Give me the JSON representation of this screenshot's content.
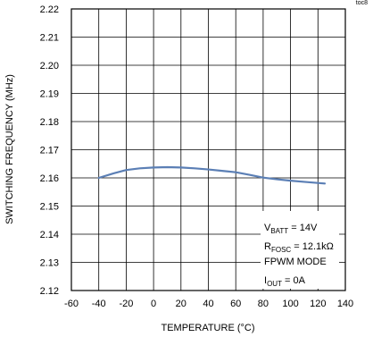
{
  "toc_label": "toc8",
  "chart_data": {
    "type": "line",
    "xlabel": "TEMPERATURE (°C)",
    "ylabel": "SWITCHING FREQUENCY (MHz)",
    "xlim": [
      -60,
      140
    ],
    "ylim": [
      2.12,
      2.22
    ],
    "xticks": [
      "-60",
      "-40",
      "-20",
      "0",
      "20",
      "40",
      "60",
      "80",
      "100",
      "120",
      "140"
    ],
    "yticks": [
      "2.12",
      "2.13",
      "2.14",
      "2.15",
      "2.16",
      "2.17",
      "2.18",
      "2.19",
      "2.20",
      "2.21",
      "2.22"
    ],
    "grid": true,
    "series": [
      {
        "color": "#5b7fb5",
        "x": [
          -40,
          -30,
          -20,
          -10,
          0,
          10,
          20,
          30,
          40,
          50,
          60,
          70,
          80,
          90,
          100,
          110,
          120,
          125
        ],
        "y": [
          2.16,
          2.1615,
          2.1628,
          2.1634,
          2.1637,
          2.1638,
          2.1637,
          2.1634,
          2.163,
          2.1625,
          2.162,
          2.1611,
          2.1601,
          2.1595,
          2.159,
          2.1586,
          2.1582,
          2.158
        ]
      }
    ],
    "annotation": {
      "line1_main": "V",
      "line1_sub": "BATT",
      "line1_rest": " = 14V",
      "line2_main": "R",
      "line2_sub": "FOSC",
      "line2_rest": " = 12.1kΩ",
      "line3": "FPWM MODE",
      "line4_main": "I",
      "line4_sub": "OUT",
      "line4_rest": " = 0A"
    }
  }
}
